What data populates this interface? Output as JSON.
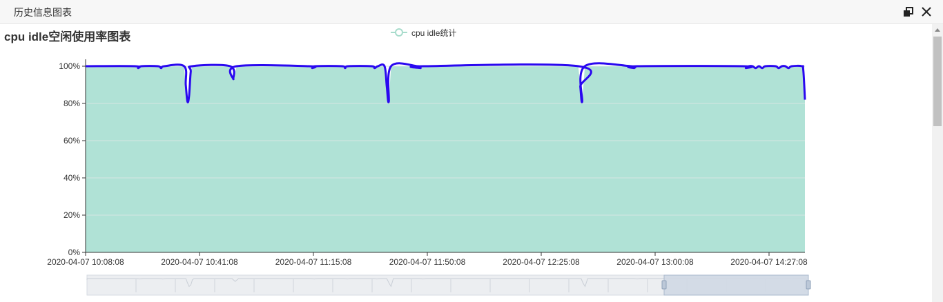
{
  "window": {
    "title": "历史信息图表",
    "restore_icon": "restore-window-icon",
    "close_icon": "close-icon"
  },
  "colors": {
    "line": "#2a08f0",
    "area": "#b0e2d6",
    "grid": "#d6e6e2",
    "legend": "#a8dccc",
    "zoom_fill": "#d0d8e4",
    "zoom_border": "#a8b8cc"
  },
  "chart_data": {
    "type": "area",
    "title": "cpu idle空闲使用率图表",
    "legend": {
      "labels": [
        "cpu idle统计"
      ],
      "position": "top-center"
    },
    "grid": true,
    "ylim": [
      0,
      100
    ],
    "y_ticks": [
      "0%",
      "20%",
      "40%",
      "60%",
      "80%",
      "100%"
    ],
    "x_ticks": [
      "2020-04-07 10:08:08",
      "2020-04-07 10:41:08",
      "2020-04-07 11:15:08",
      "2020-04-07 11:50:08",
      "2020-04-07 12:25:08",
      "2020-04-07 13:00:08",
      "2020-04-07 14:27:08"
    ],
    "series": [
      {
        "name": "cpu idle统计",
        "points": [
          [
            0,
            100
          ],
          [
            15,
            100
          ],
          [
            16,
            99
          ],
          [
            17,
            100
          ],
          [
            22,
            100
          ],
          [
            23,
            99
          ],
          [
            24,
            100
          ],
          [
            30,
            100
          ],
          [
            30.5,
            90
          ],
          [
            31,
            81
          ],
          [
            31.5,
            84
          ],
          [
            32,
            97
          ],
          [
            32.5,
            100
          ],
          [
            44,
            100
          ],
          [
            45,
            93
          ],
          [
            46,
            100
          ],
          [
            68,
            100
          ],
          [
            69,
            99
          ],
          [
            70,
            100
          ],
          [
            78,
            100
          ],
          [
            79,
            99
          ],
          [
            80,
            100
          ],
          [
            87,
            100
          ],
          [
            88,
            99
          ],
          [
            89,
            100
          ],
          [
            91,
            100
          ],
          [
            91.7,
            89
          ],
          [
            92.3,
            81
          ],
          [
            93,
            100
          ],
          [
            101,
            100
          ],
          [
            102,
            99
          ],
          [
            103,
            100
          ],
          [
            150,
            100
          ],
          [
            150.6,
            89
          ],
          [
            151.2,
            81
          ],
          [
            152,
            100
          ],
          [
            166,
            100
          ],
          [
            167,
            99
          ],
          [
            168,
            100
          ],
          [
            200,
            100
          ],
          [
            201,
            99
          ],
          [
            202,
            100
          ],
          [
            203,
            100
          ],
          [
            204,
            99
          ],
          [
            205,
            100
          ],
          [
            206,
            99
          ],
          [
            207,
            100
          ],
          [
            210,
            100
          ],
          [
            211,
            99
          ],
          [
            212,
            100
          ],
          [
            213,
            100
          ],
          [
            214,
            99
          ],
          [
            215,
            100
          ],
          [
            218,
            100
          ],
          [
            218.5,
            98
          ],
          [
            219,
            82
          ]
        ]
      }
    ]
  },
  "zoom": {
    "start": 80,
    "end": 100
  }
}
